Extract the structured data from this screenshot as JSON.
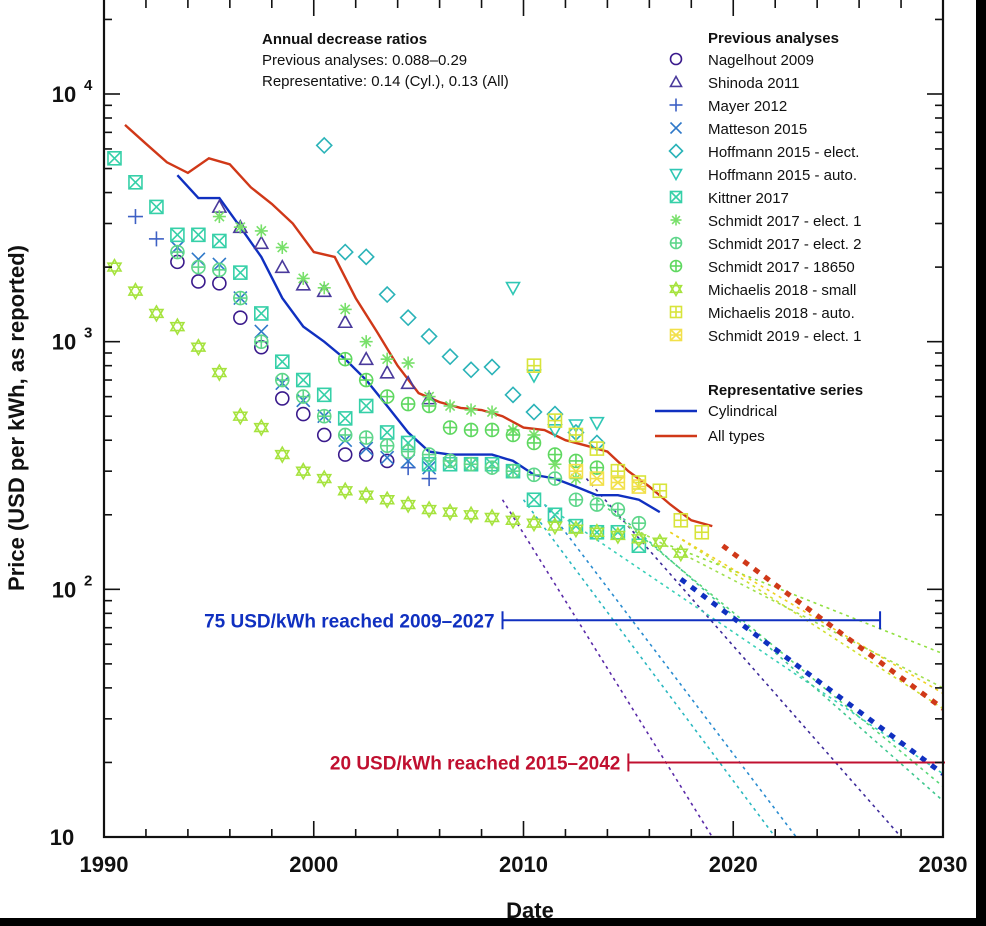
{
  "chart_data": {
    "type": "scatter",
    "xlabel": "Date",
    "ylabel": "Price (USD per kWh, as reported)",
    "x_range": [
      1990,
      2030
    ],
    "y_range": [
      10,
      25000
    ],
    "y_scale": "log",
    "x_ticks": [
      "1990",
      "2000",
      "2010",
      "2020",
      "2030"
    ],
    "y_ticks": [
      {
        "value": 10,
        "base": "10",
        "exp": ""
      },
      {
        "value": 100,
        "base": "10",
        "exp": "2"
      },
      {
        "value": 1000,
        "base": "10",
        "exp": "3"
      },
      {
        "value": 10000,
        "base": "10",
        "exp": "4"
      }
    ],
    "annotation": {
      "title": "Annual decrease ratios",
      "line1": "Previous analyses: 0.088–0.29",
      "line2": "Representative: 0.14 (Cyl.), 0.13 (All)"
    },
    "legend_title_previous": "Previous analyses",
    "legend_title_representative": "Representative series",
    "series": [
      {
        "name": "Nagelhout 2009",
        "marker": "circle",
        "color": "#3a1a8c",
        "points": [
          [
            1993.5,
            2100
          ],
          [
            1994.5,
            1750
          ],
          [
            1995.5,
            1720
          ],
          [
            1996.5,
            1250
          ],
          [
            1997.5,
            950
          ],
          [
            1998.5,
            590
          ],
          [
            1999.5,
            510
          ],
          [
            2000.5,
            420
          ],
          [
            2001.5,
            350
          ],
          [
            2002.5,
            350
          ],
          [
            2003.5,
            330
          ]
        ]
      },
      {
        "name": "Shinoda 2011",
        "marker": "triangle",
        "color": "#4a3a9c",
        "points": [
          [
            1995.5,
            3500
          ],
          [
            1996.5,
            2900
          ],
          [
            1997.5,
            2500
          ],
          [
            1998.5,
            2000
          ],
          [
            1999.5,
            1700
          ],
          [
            2000.5,
            1600
          ],
          [
            2001.5,
            1200
          ],
          [
            2002.5,
            850
          ],
          [
            2003.5,
            750
          ],
          [
            2004.5,
            680
          ],
          [
            2005.5,
            590
          ]
        ]
      },
      {
        "name": "Mayer 2012",
        "marker": "plus",
        "color": "#3d60c4",
        "points": [
          [
            1991.5,
            3200
          ],
          [
            1992.5,
            2600
          ],
          [
            2004.5,
            310
          ],
          [
            2005.5,
            280
          ]
        ]
      },
      {
        "name": "Matteson 2015",
        "marker": "x",
        "color": "#2f78c9",
        "points": [
          [
            1993.5,
            2400
          ],
          [
            1994.5,
            2150
          ],
          [
            1995.5,
            2050
          ],
          [
            1996.5,
            1500
          ],
          [
            1997.5,
            1100
          ],
          [
            1998.5,
            680
          ],
          [
            1999.5,
            580
          ],
          [
            2000.5,
            500
          ],
          [
            2001.5,
            400
          ],
          [
            2002.5,
            370
          ],
          [
            2003.5,
            340
          ],
          [
            2004.5,
            330
          ],
          [
            2005.5,
            310
          ]
        ]
      },
      {
        "name": "Hoffmann 2015 - elect.",
        "marker": "diamond",
        "color": "#2ab3b8",
        "points": [
          [
            2000.5,
            6200
          ],
          [
            2001.5,
            2300
          ],
          [
            2002.5,
            2200
          ],
          [
            2003.5,
            1550
          ],
          [
            2004.5,
            1250
          ],
          [
            2005.5,
            1050
          ],
          [
            2006.5,
            870
          ],
          [
            2007.5,
            770
          ],
          [
            2008.5,
            790
          ],
          [
            2009.5,
            610
          ],
          [
            2010.5,
            520
          ],
          [
            2011.5,
            510
          ],
          [
            2012.5,
            430
          ],
          [
            2013.5,
            390
          ]
        ]
      },
      {
        "name": "Hoffmann 2015 - auto.",
        "marker": "tridown",
        "color": "#2fc7b5",
        "points": [
          [
            2009.5,
            1650
          ],
          [
            2010.5,
            730
          ],
          [
            2011.5,
            440
          ],
          [
            2012.5,
            460
          ],
          [
            2013.5,
            470
          ]
        ]
      },
      {
        "name": "Kittner 2017",
        "marker": "boxx",
        "color": "#36d0a8",
        "points": [
          [
            1990.5,
            5500
          ],
          [
            1991.5,
            4400
          ],
          [
            1992.5,
            3500
          ],
          [
            1993.5,
            2700
          ],
          [
            1994.5,
            2700
          ],
          [
            1995.5,
            2550
          ],
          [
            1996.5,
            1900
          ],
          [
            1997.5,
            1300
          ],
          [
            1998.5,
            830
          ],
          [
            1999.5,
            700
          ],
          [
            2000.5,
            610
          ],
          [
            2001.5,
            490
          ],
          [
            2002.5,
            550
          ],
          [
            2003.5,
            430
          ],
          [
            2004.5,
            390
          ],
          [
            2005.5,
            320
          ],
          [
            2006.5,
            320
          ],
          [
            2007.5,
            320
          ],
          [
            2008.5,
            320
          ],
          [
            2009.5,
            300
          ],
          [
            2010.5,
            230
          ],
          [
            2011.5,
            200
          ],
          [
            2012.5,
            180
          ],
          [
            2013.5,
            170
          ],
          [
            2014.5,
            170
          ],
          [
            2015.5,
            150
          ]
        ]
      },
      {
        "name": "Schmidt 2017 - elect. 1",
        "marker": "star",
        "color": "#78e06a",
        "points": [
          [
            1995.5,
            3200
          ],
          [
            1996.5,
            2900
          ],
          [
            1997.5,
            2800
          ],
          [
            1998.5,
            2400
          ],
          [
            1999.5,
            1800
          ],
          [
            2000.5,
            1650
          ],
          [
            2001.5,
            1350
          ],
          [
            2002.5,
            1000
          ],
          [
            2003.5,
            850
          ],
          [
            2004.5,
            820
          ],
          [
            2005.5,
            600
          ],
          [
            2006.5,
            550
          ],
          [
            2007.5,
            530
          ],
          [
            2008.5,
            520
          ],
          [
            2009.5,
            440
          ],
          [
            2010.5,
            420
          ],
          [
            2011.5,
            320
          ],
          [
            2012.5,
            280
          ]
        ]
      },
      {
        "name": "Schmidt 2017 - elect. 2",
        "marker": "circleplus",
        "color": "#5ed68a",
        "points": [
          [
            1993.5,
            2300
          ],
          [
            1994.5,
            2000
          ],
          [
            1995.5,
            1950
          ],
          [
            1996.5,
            1500
          ],
          [
            1997.5,
            1000
          ],
          [
            1998.5,
            700
          ],
          [
            1999.5,
            600
          ],
          [
            2000.5,
            500
          ],
          [
            2001.5,
            420
          ],
          [
            2002.5,
            410
          ],
          [
            2003.5,
            380
          ],
          [
            2004.5,
            360
          ],
          [
            2005.5,
            350
          ],
          [
            2006.5,
            330
          ],
          [
            2007.5,
            320
          ],
          [
            2008.5,
            310
          ],
          [
            2009.5,
            300
          ],
          [
            2010.5,
            290
          ],
          [
            2011.5,
            280
          ],
          [
            2012.5,
            230
          ],
          [
            2013.5,
            220
          ],
          [
            2014.5,
            210
          ],
          [
            2015.5,
            185
          ]
        ]
      },
      {
        "name": "Schmidt 2017 - 18650",
        "marker": "circleplus",
        "color": "#5fd860",
        "points": [
          [
            2001.5,
            850
          ],
          [
            2002.5,
            700
          ],
          [
            2003.5,
            600
          ],
          [
            2004.5,
            560
          ],
          [
            2005.5,
            550
          ],
          [
            2006.5,
            450
          ],
          [
            2007.5,
            440
          ],
          [
            2008.5,
            440
          ],
          [
            2009.5,
            420
          ],
          [
            2010.5,
            390
          ],
          [
            2011.5,
            350
          ],
          [
            2012.5,
            330
          ],
          [
            2013.5,
            310
          ]
        ]
      },
      {
        "name": "Michaelis 2018 - small",
        "marker": "hexagram",
        "color": "#a6e33e",
        "points": [
          [
            1990.5,
            2000
          ],
          [
            1991.5,
            1600
          ],
          [
            1992.5,
            1300
          ],
          [
            1993.5,
            1150
          ],
          [
            1994.5,
            950
          ],
          [
            1995.5,
            750
          ],
          [
            1996.5,
            500
          ],
          [
            1997.5,
            450
          ],
          [
            1998.5,
            350
          ],
          [
            1999.5,
            300
          ],
          [
            2000.5,
            280
          ],
          [
            2001.5,
            250
          ],
          [
            2002.5,
            240
          ],
          [
            2003.5,
            230
          ],
          [
            2004.5,
            220
          ],
          [
            2005.5,
            210
          ],
          [
            2006.5,
            205
          ],
          [
            2007.5,
            200
          ],
          [
            2008.5,
            195
          ],
          [
            2009.5,
            190
          ],
          [
            2010.5,
            185
          ],
          [
            2011.5,
            180
          ],
          [
            2012.5,
            175
          ],
          [
            2013.5,
            170
          ],
          [
            2014.5,
            165
          ],
          [
            2015.5,
            160
          ],
          [
            2016.5,
            155
          ],
          [
            2017.5,
            140
          ]
        ]
      },
      {
        "name": "Michaelis 2018 - auto.",
        "marker": "boxplus",
        "color": "#d8e43a",
        "points": [
          [
            2010.5,
            800
          ],
          [
            2011.5,
            480
          ],
          [
            2012.5,
            420
          ],
          [
            2013.5,
            370
          ],
          [
            2014.5,
            300
          ],
          [
            2015.5,
            270
          ],
          [
            2016.5,
            250
          ],
          [
            2017.5,
            190
          ],
          [
            2018.5,
            170
          ]
        ]
      },
      {
        "name": "Schmidt 2019 - elect. 1",
        "marker": "boxstar",
        "color": "#f2e04a",
        "points": [
          [
            2012.5,
            300
          ],
          [
            2013.5,
            280
          ],
          [
            2014.5,
            270
          ],
          [
            2015.5,
            260
          ]
        ]
      }
    ],
    "representative": [
      {
        "name": "Cylindrical",
        "color": "#1030c0",
        "points": [
          [
            1993.5,
            4700
          ],
          [
            1994.5,
            3800
          ],
          [
            1995.5,
            3800
          ],
          [
            1996.5,
            2900
          ],
          [
            1997.5,
            2200
          ],
          [
            1998.5,
            1500
          ],
          [
            1999.5,
            1150
          ],
          [
            2000.5,
            1000
          ],
          [
            2001.5,
            850
          ],
          [
            2002.5,
            700
          ],
          [
            2003.5,
            550
          ],
          [
            2004.5,
            430
          ],
          [
            2005.5,
            360
          ],
          [
            2006.5,
            350
          ],
          [
            2007.5,
            350
          ],
          [
            2008.5,
            350
          ],
          [
            2009.5,
            330
          ],
          [
            2010.5,
            290
          ],
          [
            2011.5,
            280
          ],
          [
            2012.5,
            260
          ],
          [
            2013.5,
            240
          ],
          [
            2014.5,
            240
          ],
          [
            2015.5,
            230
          ],
          [
            2016.5,
            205
          ]
        ]
      },
      {
        "name": "All types",
        "color": "#d03818",
        "points": [
          [
            1991,
            7500
          ],
          [
            1992,
            6300
          ],
          [
            1993,
            5300
          ],
          [
            1994,
            4800
          ],
          [
            1995,
            5500
          ],
          [
            1996,
            5200
          ],
          [
            1997,
            4200
          ],
          [
            1998,
            3600
          ],
          [
            1999,
            3000
          ],
          [
            2000,
            2300
          ],
          [
            2001,
            2200
          ],
          [
            2002,
            1500
          ],
          [
            2003,
            1100
          ],
          [
            2004,
            800
          ],
          [
            2005,
            620
          ],
          [
            2006,
            570
          ],
          [
            2007,
            540
          ],
          [
            2008,
            530
          ],
          [
            2009,
            500
          ],
          [
            2010,
            450
          ],
          [
            2011,
            440
          ],
          [
            2012,
            400
          ],
          [
            2013,
            380
          ],
          [
            2014,
            360
          ],
          [
            2015,
            300
          ],
          [
            2016,
            260
          ],
          [
            2017,
            220
          ],
          [
            2018,
            190
          ],
          [
            2019,
            180
          ]
        ]
      }
    ],
    "projections": [
      {
        "color": "#5a2aa8",
        "from": [
          2009,
          230
        ],
        "to": [
          2019,
          10
        ]
      },
      {
        "color": "#3d2a9a",
        "from": [
          2013,
          280
        ],
        "to": [
          2028,
          10
        ]
      },
      {
        "color": "#2a8cd0",
        "from": [
          2011,
          220
        ],
        "to": [
          2023,
          10
        ]
      },
      {
        "color": "#2ab8c0",
        "from": [
          2010,
          230
        ],
        "to": [
          2022,
          10
        ]
      },
      {
        "color": "#3ad0b8",
        "from": [
          2011,
          220
        ],
        "to": [
          2030,
          18
        ]
      },
      {
        "color": "#40c890",
        "from": [
          2014,
          220
        ],
        "to": [
          2030,
          14
        ]
      },
      {
        "color": "#58d878",
        "from": [
          2013,
          250
        ],
        "to": [
          2030,
          16
        ]
      },
      {
        "color": "#90e040",
        "from": [
          2017,
          150
        ],
        "to": [
          2030,
          55
        ]
      },
      {
        "color": "#d0e030",
        "from": [
          2017,
          170
        ],
        "to": [
          2030,
          33
        ]
      },
      {
        "color": "#f0d020",
        "from": [
          2017,
          170
        ],
        "to": [
          2030,
          38
        ]
      },
      {
        "color": "#a0e050",
        "from": [
          2015,
          180
        ],
        "to": [
          2030,
          40
        ]
      }
    ],
    "bold_projections": [
      {
        "name": "Cylindrical",
        "color": "#1030c0",
        "from": [
          2017.5,
          110
        ],
        "to": [
          2030,
          18
        ]
      },
      {
        "name": "All types",
        "color": "#d03818",
        "from": [
          2019.5,
          150
        ],
        "to": [
          2030,
          33
        ]
      }
    ],
    "ranges": [
      {
        "label": "75 USD/kWh reached 2009–2027",
        "value": 75,
        "start": 2009,
        "end": 2027,
        "color": "#1030c0"
      },
      {
        "label": "20 USD/kWh reached 2015–2042",
        "value": 20,
        "start": 2015,
        "end": 2042,
        "color": "#c01030"
      }
    ]
  }
}
